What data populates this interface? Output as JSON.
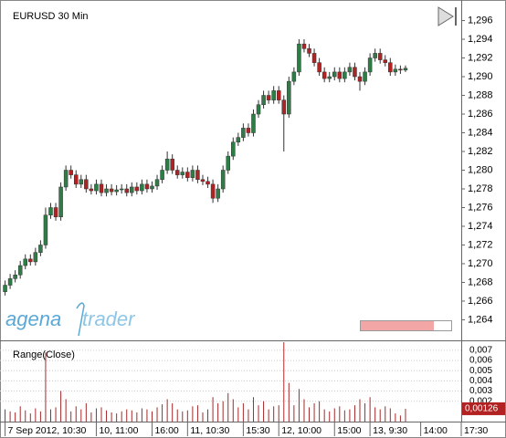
{
  "chart_data": [
    {
      "type": "candlestick",
      "title": "EURUSD 30 Min",
      "logo": [
        "agena",
        "trader"
      ],
      "up_color": "#2e7d46",
      "down_color": "#b22222",
      "ohlc": [
        [
          1.267,
          1.2682,
          1.2666,
          1.2677
        ],
        [
          1.2677,
          1.2689,
          1.2673,
          1.2684
        ],
        [
          1.2684,
          1.2693,
          1.268,
          1.2688
        ],
        [
          1.2688,
          1.2703,
          1.2684,
          1.2698
        ],
        [
          1.2698,
          1.271,
          1.2694,
          1.2705
        ],
        [
          1.2705,
          1.271,
          1.2698,
          1.2702
        ],
        [
          1.2702,
          1.2717,
          1.2698,
          1.2712
        ],
        [
          1.2712,
          1.2725,
          1.2708,
          1.272
        ],
        [
          1.272,
          1.276,
          1.2716,
          1.2752
        ],
        [
          1.2752,
          1.2765,
          1.2748,
          1.276
        ],
        [
          1.276,
          1.2765,
          1.2746,
          1.275
        ],
        [
          1.275,
          1.2787,
          1.2746,
          1.2782
        ],
        [
          1.2782,
          1.2805,
          1.2778,
          1.28
        ],
        [
          1.28,
          1.2805,
          1.2791,
          1.2795
        ],
        [
          1.2795,
          1.28,
          1.2781,
          1.2785
        ],
        [
          1.2785,
          1.2795,
          1.2781,
          1.279
        ],
        [
          1.279,
          1.2795,
          1.2776,
          1.278
        ],
        [
          1.278,
          1.2785,
          1.2774,
          1.2778
        ],
        [
          1.2778,
          1.279,
          1.2774,
          1.2785
        ],
        [
          1.2785,
          1.279,
          1.2772,
          1.2776
        ],
        [
          1.2776,
          1.2785,
          1.2772,
          1.278
        ],
        [
          1.278,
          1.2785,
          1.2773,
          1.2777
        ],
        [
          1.2777,
          1.2784,
          1.2773,
          1.2779
        ],
        [
          1.2779,
          1.2785,
          1.2775,
          1.278
        ],
        [
          1.278,
          1.2785,
          1.2772,
          1.2776
        ],
        [
          1.2776,
          1.2787,
          1.2772,
          1.2782
        ],
        [
          1.2782,
          1.2787,
          1.2774,
          1.2778
        ],
        [
          1.2778,
          1.279,
          1.2774,
          1.2785
        ],
        [
          1.2785,
          1.279,
          1.2776,
          1.278
        ],
        [
          1.278,
          1.2788,
          1.2776,
          1.2783
        ],
        [
          1.2783,
          1.2795,
          1.2779,
          1.279
        ],
        [
          1.279,
          1.2805,
          1.2786,
          1.28
        ],
        [
          1.28,
          1.282,
          1.2796,
          1.2812
        ],
        [
          1.2812,
          1.2817,
          1.2796,
          1.28
        ],
        [
          1.28,
          1.2805,
          1.2791,
          1.2795
        ],
        [
          1.2795,
          1.2803,
          1.2791,
          1.2798
        ],
        [
          1.2798,
          1.2803,
          1.2788,
          1.2792
        ],
        [
          1.2792,
          1.2805,
          1.2788,
          1.28
        ],
        [
          1.28,
          1.2805,
          1.2786,
          1.279
        ],
        [
          1.279,
          1.2795,
          1.2784,
          1.2788
        ],
        [
          1.2788,
          1.2793,
          1.2781,
          1.2785
        ],
        [
          1.2785,
          1.279,
          1.2765,
          1.277
        ],
        [
          1.277,
          1.2785,
          1.2766,
          1.278
        ],
        [
          1.278,
          1.2805,
          1.2776,
          1.28
        ],
        [
          1.28,
          1.282,
          1.2796,
          1.2815
        ],
        [
          1.2815,
          1.2835,
          1.2811,
          1.283
        ],
        [
          1.283,
          1.284,
          1.2826,
          1.2835
        ],
        [
          1.2835,
          1.285,
          1.2831,
          1.2845
        ],
        [
          1.2845,
          1.285,
          1.2836,
          1.284
        ],
        [
          1.284,
          1.2865,
          1.2836,
          1.286
        ],
        [
          1.286,
          1.2875,
          1.2856,
          1.287
        ],
        [
          1.287,
          1.2885,
          1.2866,
          1.288
        ],
        [
          1.288,
          1.2885,
          1.2871,
          1.2875
        ],
        [
          1.2875,
          1.289,
          1.2871,
          1.2885
        ],
        [
          1.2885,
          1.289,
          1.2871,
          1.2875
        ],
        [
          1.2875,
          1.288,
          1.282,
          1.286
        ],
        [
          1.286,
          1.29,
          1.2856,
          1.2895
        ],
        [
          1.2895,
          1.291,
          1.2891,
          1.2905
        ],
        [
          1.2905,
          1.294,
          1.2901,
          1.2935
        ],
        [
          1.2935,
          1.294,
          1.2926,
          1.293
        ],
        [
          1.293,
          1.2935,
          1.2921,
          1.2925
        ],
        [
          1.2925,
          1.293,
          1.2911,
          1.2915
        ],
        [
          1.2915,
          1.292,
          1.2901,
          1.2905
        ],
        [
          1.2905,
          1.291,
          1.2894,
          1.2898
        ],
        [
          1.2898,
          1.2905,
          1.2894,
          1.29
        ],
        [
          1.29,
          1.291,
          1.2896,
          1.2905
        ],
        [
          1.2905,
          1.291,
          1.2894,
          1.2898
        ],
        [
          1.2898,
          1.291,
          1.2894,
          1.2905
        ],
        [
          1.2905,
          1.2915,
          1.2901,
          1.291
        ],
        [
          1.291,
          1.2915,
          1.2896,
          1.29
        ],
        [
          1.29,
          1.2905,
          1.2885,
          1.2895
        ],
        [
          1.2895,
          1.291,
          1.2891,
          1.2905
        ],
        [
          1.2905,
          1.2925,
          1.2901,
          1.292
        ],
        [
          1.292,
          1.293,
          1.2916,
          1.2925
        ],
        [
          1.2925,
          1.293,
          1.2914,
          1.2918
        ],
        [
          1.2918,
          1.2923,
          1.2911,
          1.2915
        ],
        [
          1.2915,
          1.292,
          1.2901,
          1.2905
        ],
        [
          1.2905,
          1.2913,
          1.2901,
          1.2908
        ],
        [
          1.2908,
          1.2912,
          1.2903,
          1.2907
        ],
        [
          1.2907,
          1.2912,
          1.2905,
          1.2909
        ]
      ],
      "xlim": [
        -1,
        90
      ],
      "xticks": [
        {
          "value": 0,
          "label": "7 Sep 2012, 10:30"
        },
        {
          "value": 18,
          "label": "10, 11:00"
        },
        {
          "value": 29,
          "label": "16:00"
        },
        {
          "value": 36,
          "label": "11, 10:30"
        },
        {
          "value": 47,
          "label": "15:30"
        },
        {
          "value": 54,
          "label": "12, 10:00"
        },
        {
          "value": 65,
          "label": "15:00"
        },
        {
          "value": 72,
          "label": "13, 9:30"
        },
        {
          "value": 82,
          "label": "14:00"
        },
        {
          "value": 90,
          "label": "17:30"
        }
      ],
      "ylim": [
        1.2618,
        1.2982
      ],
      "yticks": [
        {
          "value": 1.264,
          "label": "1,264"
        },
        {
          "value": 1.266,
          "label": "1,266"
        },
        {
          "value": 1.268,
          "label": "1,268"
        },
        {
          "value": 1.27,
          "label": "1,270"
        },
        {
          "value": 1.272,
          "label": "1,272"
        },
        {
          "value": 1.274,
          "label": "1,274"
        },
        {
          "value": 1.276,
          "label": "1,276"
        },
        {
          "value": 1.278,
          "label": "1,278"
        },
        {
          "value": 1.28,
          "label": "1,280"
        },
        {
          "value": 1.282,
          "label": "1,282"
        },
        {
          "value": 1.284,
          "label": "1,284"
        },
        {
          "value": 1.286,
          "label": "1,286"
        },
        {
          "value": 1.288,
          "label": "1,288"
        },
        {
          "value": 1.29,
          "label": "1,290"
        },
        {
          "value": 1.292,
          "label": "1,292"
        },
        {
          "value": 1.294,
          "label": "1,294"
        },
        {
          "value": 1.296,
          "label": "1,296"
        }
      ]
    },
    {
      "type": "bar",
      "title": "Range(Close)",
      "color": "#a52a2a",
      "values": [
        0.0012,
        0.001,
        0.0009,
        0.0015,
        0.0011,
        0.0008,
        0.0013,
        0.001,
        0.0068,
        0.0012,
        0.0014,
        0.003,
        0.0022,
        0.001,
        0.0015,
        0.0012,
        0.0018,
        0.0009,
        0.0013,
        0.0014,
        0.0011,
        0.0009,
        0.0008,
        0.001,
        0.0012,
        0.0011,
        0.0009,
        0.0013,
        0.0012,
        0.001,
        0.0014,
        0.0017,
        0.0022,
        0.0018,
        0.0012,
        0.001,
        0.0011,
        0.0015,
        0.0016,
        0.0009,
        0.0012,
        0.0024,
        0.0018,
        0.002,
        0.0028,
        0.0022,
        0.0014,
        0.0018,
        0.0012,
        0.0024,
        0.0016,
        0.002,
        0.0012,
        0.0015,
        0.0016,
        0.0078,
        0.0038,
        0.0016,
        0.0032,
        0.0022,
        0.0014,
        0.0018,
        0.002,
        0.0012,
        0.001,
        0.0013,
        0.0015,
        0.0011,
        0.0012,
        0.0016,
        0.0022,
        0.0018,
        0.0024,
        0.0014,
        0.0012,
        0.0015,
        0.0013,
        0.0008,
        0.0006,
        0.00126
      ],
      "last_value_label": "0,00126",
      "ylim": [
        0,
        0.0078
      ],
      "yticks": [
        {
          "value": 0.002,
          "label": "0,002"
        },
        {
          "value": 0.003,
          "label": "0,003"
        },
        {
          "value": 0.004,
          "label": "0,004"
        },
        {
          "value": 0.005,
          "label": "0,005"
        },
        {
          "value": 0.006,
          "label": "0,006"
        },
        {
          "value": 0.007,
          "label": "0,007"
        }
      ],
      "grid": true
    }
  ]
}
